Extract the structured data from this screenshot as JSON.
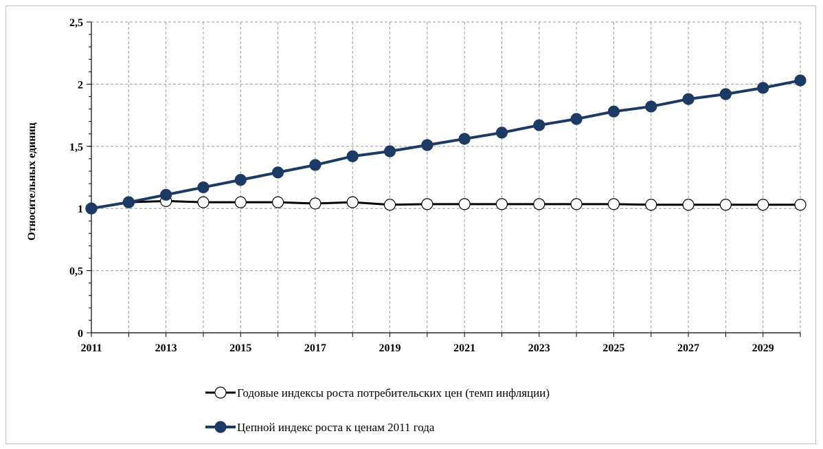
{
  "chart_data": {
    "type": "line",
    "title": "",
    "xlabel": "",
    "ylabel": "Относительных единиц",
    "xlim": [
      2011,
      2030
    ],
    "ylim": [
      0,
      2.5
    ],
    "x": [
      2011,
      2012,
      2013,
      2014,
      2015,
      2016,
      2017,
      2018,
      2019,
      2020,
      2021,
      2022,
      2023,
      2024,
      2025,
      2026,
      2027,
      2028,
      2029,
      2030
    ],
    "x_tick_labels": [
      "2011",
      "2013",
      "2015",
      "2017",
      "2019",
      "2021",
      "2023",
      "2025",
      "2027",
      "2029"
    ],
    "y_tick_labels": [
      "0",
      "0,5",
      "1",
      "1,5",
      "2",
      "2,5"
    ],
    "grid": true,
    "legend_position": "bottom",
    "series": [
      {
        "name": "Годовые индексы роста потребительских цен (темп инфляции)",
        "color": "#000000",
        "marker": "open-circle",
        "values": [
          1.0,
          1.05,
          1.06,
          1.05,
          1.05,
          1.05,
          1.04,
          1.05,
          1.03,
          1.035,
          1.035,
          1.035,
          1.035,
          1.035,
          1.035,
          1.03,
          1.03,
          1.03,
          1.03,
          1.03
        ]
      },
      {
        "name": "Цепной индекс роста к ценам 2011 года",
        "color": "#1c3a64",
        "marker": "filled-circle",
        "values": [
          1.0,
          1.05,
          1.11,
          1.17,
          1.23,
          1.29,
          1.35,
          1.42,
          1.46,
          1.51,
          1.56,
          1.61,
          1.67,
          1.72,
          1.78,
          1.82,
          1.88,
          1.92,
          1.97,
          2.03
        ]
      }
    ]
  }
}
